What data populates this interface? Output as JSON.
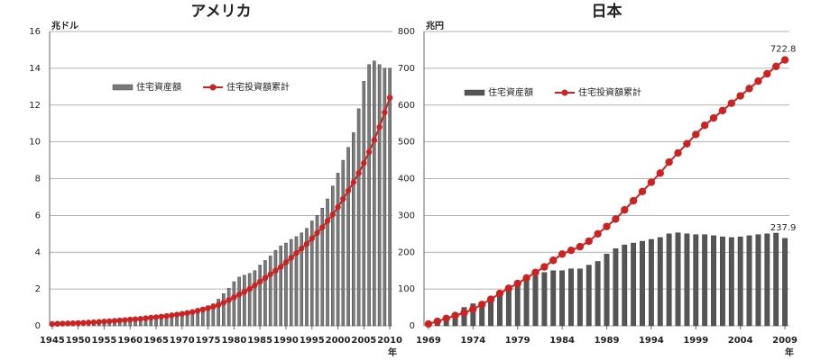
{
  "chart_data": [
    {
      "type": "bar_line",
      "title": "アメリカ",
      "y_label": "兆ドル",
      "x_label": "年",
      "x": [
        1945,
        1946,
        1947,
        1948,
        1949,
        1950,
        1951,
        1952,
        1953,
        1954,
        1955,
        1956,
        1957,
        1958,
        1959,
        1960,
        1961,
        1962,
        1963,
        1964,
        1965,
        1966,
        1967,
        1968,
        1969,
        1970,
        1971,
        1972,
        1973,
        1974,
        1975,
        1976,
        1977,
        1978,
        1979,
        1980,
        1981,
        1982,
        1983,
        1984,
        1985,
        1986,
        1987,
        1988,
        1989,
        1990,
        1991,
        1992,
        1993,
        1994,
        1995,
        1996,
        1997,
        1998,
        1999,
        2000,
        2001,
        2002,
        2003,
        2004,
        2005,
        2006,
        2007,
        2008,
        2009,
        2010
      ],
      "xlim": [
        1944.5,
        2010.5
      ],
      "xticks": [
        1945,
        1950,
        1955,
        1960,
        1965,
        1970,
        1975,
        1980,
        1985,
        1990,
        1995,
        2000,
        2005,
        2010
      ],
      "ylim": [
        0,
        16
      ],
      "yticks": [
        0,
        2,
        4,
        6,
        8,
        10,
        12,
        14,
        16
      ],
      "grid": true,
      "data_labels": "none",
      "series": [
        {
          "name": "住宅資産額",
          "kind": "bar",
          "color": "#7a7a7a",
          "values": [
            0.08,
            0.09,
            0.1,
            0.11,
            0.12,
            0.13,
            0.14,
            0.15,
            0.17,
            0.18,
            0.2,
            0.22,
            0.24,
            0.26,
            0.28,
            0.3,
            0.32,
            0.34,
            0.36,
            0.38,
            0.41,
            0.44,
            0.47,
            0.5,
            0.54,
            0.58,
            0.64,
            0.72,
            0.82,
            0.92,
            1.05,
            1.2,
            1.45,
            1.75,
            2.05,
            2.4,
            2.65,
            2.75,
            2.85,
            3.0,
            3.3,
            3.55,
            3.8,
            4.1,
            4.35,
            4.5,
            4.7,
            4.85,
            5.05,
            5.3,
            5.7,
            6.0,
            6.4,
            6.9,
            7.6,
            8.3,
            9.0,
            9.7,
            10.5,
            11.8,
            13.3,
            14.2,
            14.4,
            14.2,
            14.0,
            14.0
          ]
        },
        {
          "name": "住宅投資額累計",
          "kind": "line",
          "color": "#cc2222",
          "values": [
            0.1,
            0.11,
            0.12,
            0.13,
            0.14,
            0.15,
            0.16,
            0.18,
            0.19,
            0.21,
            0.23,
            0.25,
            0.27,
            0.29,
            0.31,
            0.34,
            0.36,
            0.38,
            0.41,
            0.44,
            0.47,
            0.5,
            0.53,
            0.57,
            0.61,
            0.65,
            0.7,
            0.75,
            0.82,
            0.89,
            0.96,
            1.04,
            1.14,
            1.26,
            1.4,
            1.55,
            1.7,
            1.85,
            2.0,
            2.2,
            2.4,
            2.6,
            2.8,
            3.0,
            3.2,
            3.45,
            3.7,
            3.95,
            4.2,
            4.45,
            4.75,
            5.05,
            5.35,
            5.7,
            6.05,
            6.45,
            6.9,
            7.35,
            7.8,
            8.3,
            8.85,
            9.45,
            10.1,
            10.8,
            11.6,
            12.4
          ]
        }
      ]
    },
    {
      "type": "bar_line",
      "title": "日本",
      "y_label": "兆円",
      "x_label": "年",
      "x": [
        1969,
        1970,
        1971,
        1972,
        1973,
        1974,
        1975,
        1976,
        1977,
        1978,
        1979,
        1980,
        1981,
        1982,
        1983,
        1984,
        1985,
        1986,
        1987,
        1988,
        1989,
        1990,
        1991,
        1992,
        1993,
        1994,
        1995,
        1996,
        1997,
        1998,
        1999,
        2000,
        2001,
        2002,
        2003,
        2004,
        2005,
        2006,
        2007,
        2008,
        2009
      ],
      "xlim": [
        1968.5,
        2009.5
      ],
      "xticks": [
        1969,
        1974,
        1979,
        1984,
        1989,
        1994,
        1999,
        2004,
        2009
      ],
      "ylim": [
        0,
        800
      ],
      "yticks": [
        0,
        100,
        200,
        300,
        400,
        500,
        600,
        700,
        800
      ],
      "grid": true,
      "data_labels": "last",
      "series": [
        {
          "name": "住宅資産額",
          "kind": "bar",
          "color": "#555555",
          "values": [
            12,
            18,
            25,
            35,
            50,
            60,
            65,
            75,
            85,
            100,
            115,
            125,
            135,
            145,
            150,
            150,
            155,
            155,
            165,
            175,
            195,
            210,
            220,
            225,
            230,
            235,
            240,
            250,
            253,
            250,
            248,
            248,
            245,
            242,
            240,
            242,
            245,
            248,
            250,
            252,
            237.9
          ]
        },
        {
          "name": "住宅投資額累計",
          "kind": "line",
          "color": "#cc2222",
          "values": [
            5,
            12,
            20,
            28,
            35,
            45,
            58,
            72,
            88,
            102,
            115,
            130,
            145,
            160,
            178,
            195,
            205,
            215,
            230,
            250,
            270,
            290,
            315,
            340,
            365,
            390,
            415,
            445,
            470,
            495,
            520,
            545,
            565,
            585,
            605,
            625,
            645,
            665,
            685,
            705,
            722.8
          ]
        }
      ]
    }
  ]
}
